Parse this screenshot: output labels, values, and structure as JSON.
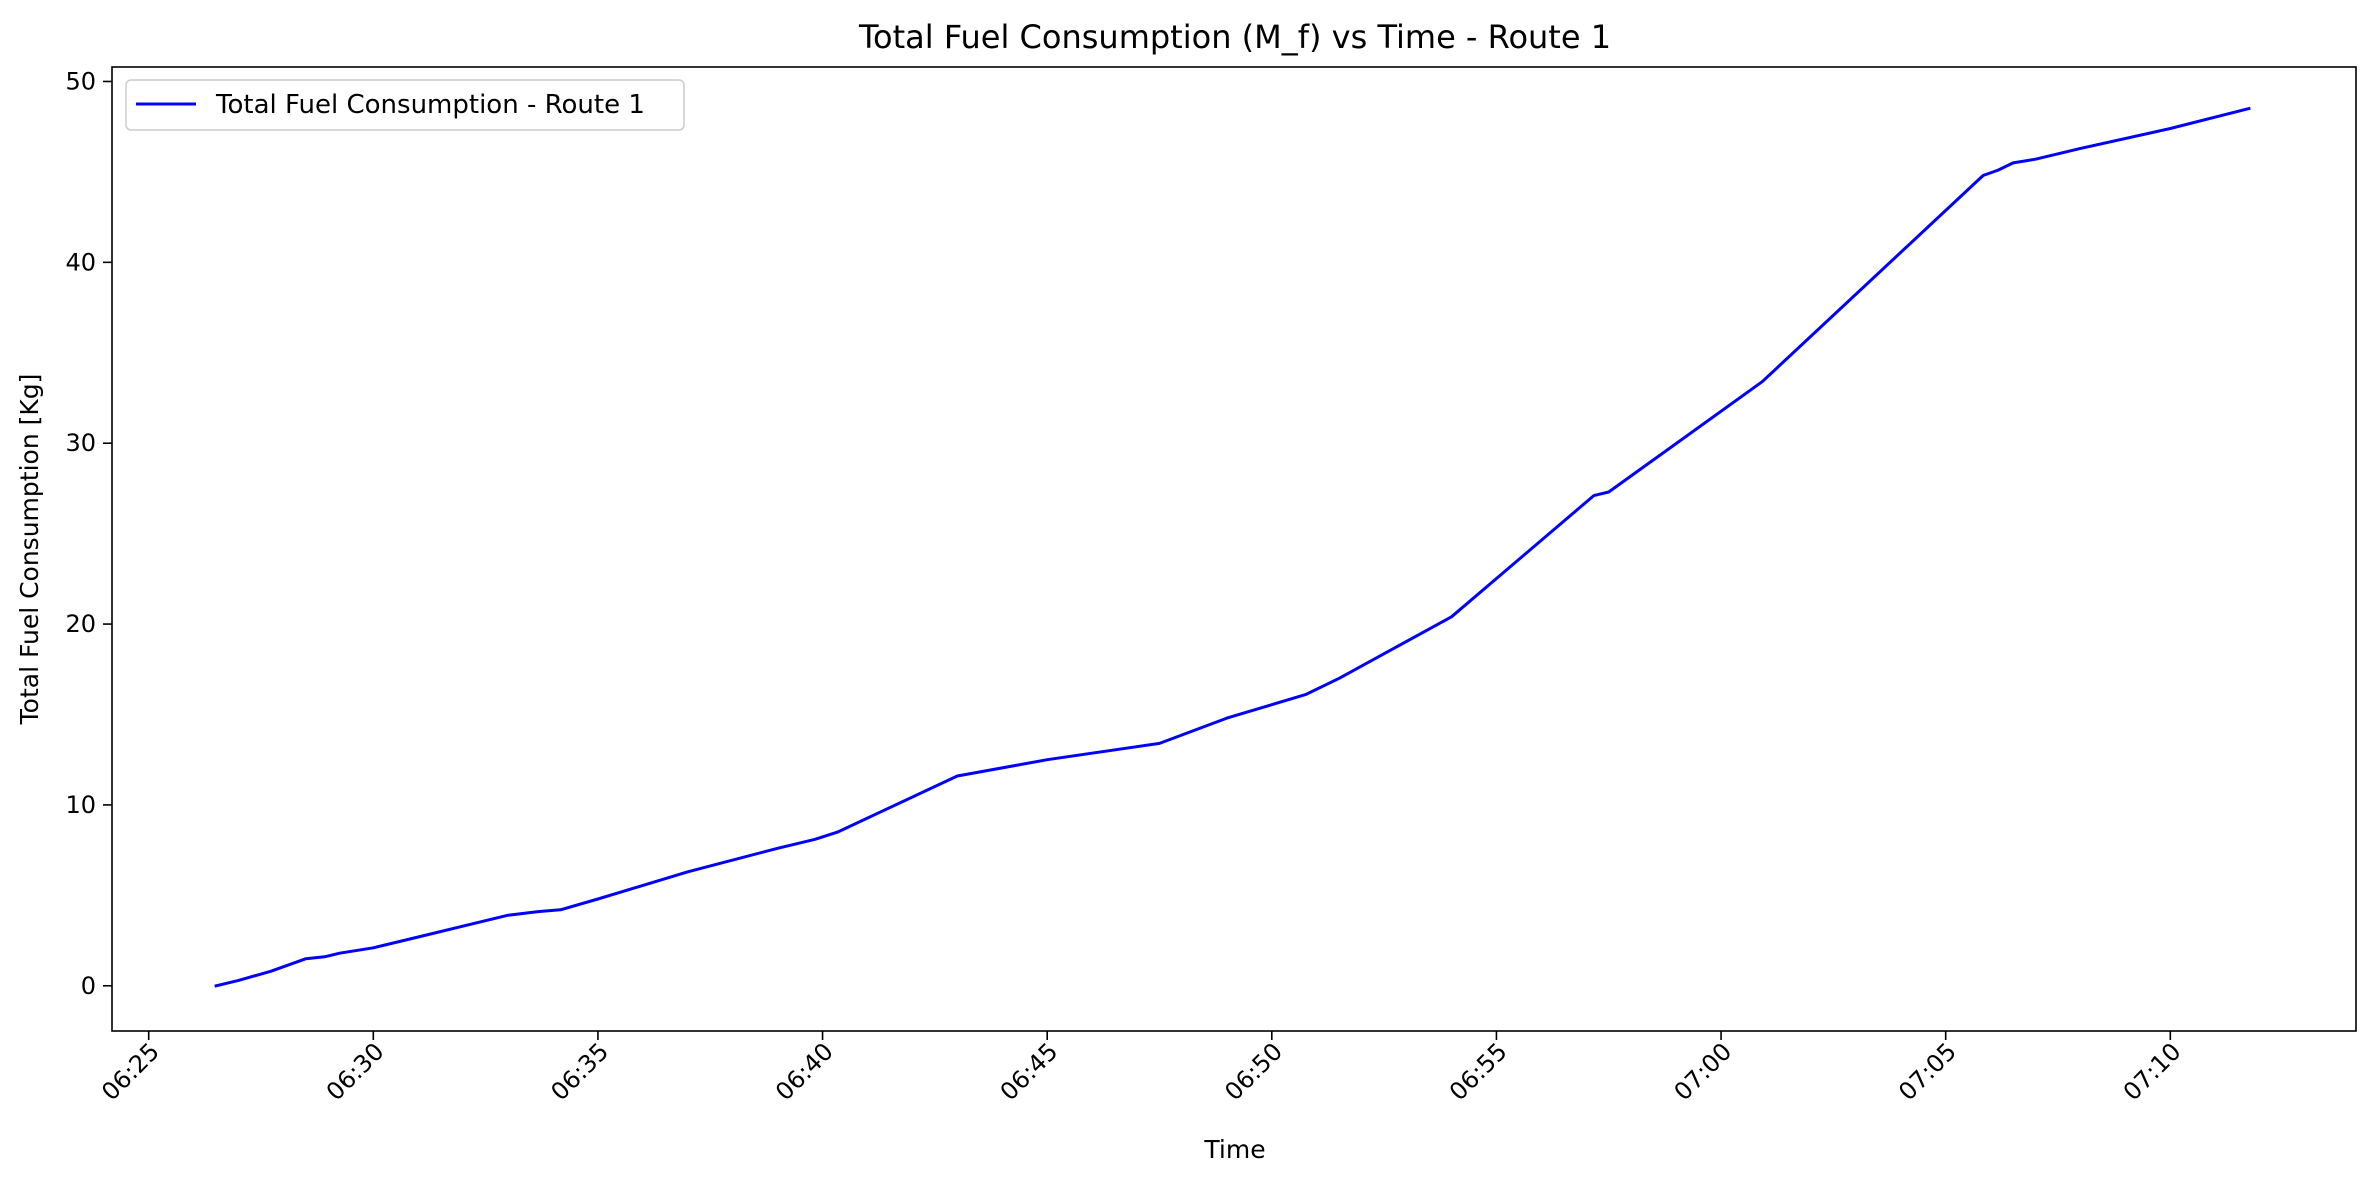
{
  "chart_data": {
    "type": "line",
    "title": "Total Fuel Consumption (M_f) vs Time - Route 1",
    "xlabel": "Time",
    "ylabel": "Total Fuel Consumption [Kg]",
    "xlim": [
      "06:24:11",
      "07:14:08"
    ],
    "ylim": [
      -2.5,
      50.8
    ],
    "xticks": [
      "06:25",
      "06:30",
      "06:35",
      "06:40",
      "06:45",
      "06:50",
      "06:55",
      "07:00",
      "07:05",
      "07:10"
    ],
    "yticks": [
      0,
      10,
      20,
      30,
      40,
      50
    ],
    "grid": false,
    "legend_position": "top-left",
    "series": [
      {
        "name": "Total Fuel Consumption - Route 1",
        "color": "#0000ff",
        "x": [
          "06:26:30",
          "06:27:00",
          "06:27:43",
          "06:28:30",
          "06:28:55",
          "06:29:15",
          "06:30:00",
          "06:31:00",
          "06:32:00",
          "06:33:00",
          "06:33:40",
          "06:34:10",
          "06:35:00",
          "06:37:00",
          "06:39:00",
          "06:39:50",
          "06:40:20",
          "06:43:00",
          "06:45:00",
          "06:47:30",
          "06:49:00",
          "06:50:45",
          "06:51:30",
          "06:54:00",
          "06:57:10",
          "06:57:30",
          "07:00:55",
          "07:05:50",
          "07:06:10",
          "07:06:30",
          "07:07:00",
          "07:08:00",
          "07:10:00",
          "07:11:45"
        ],
        "y": [
          0,
          0.3,
          0.8,
          1.5,
          1.6,
          1.8,
          2.1,
          2.7,
          3.3,
          3.9,
          4.1,
          4.2,
          4.8,
          6.3,
          7.6,
          8.1,
          8.5,
          11.6,
          12.5,
          13.4,
          14.8,
          16.1,
          17.0,
          20.4,
          27.1,
          27.3,
          33.4,
          44.8,
          45.1,
          45.5,
          45.7,
          46.3,
          47.4,
          48.5
        ]
      }
    ]
  }
}
